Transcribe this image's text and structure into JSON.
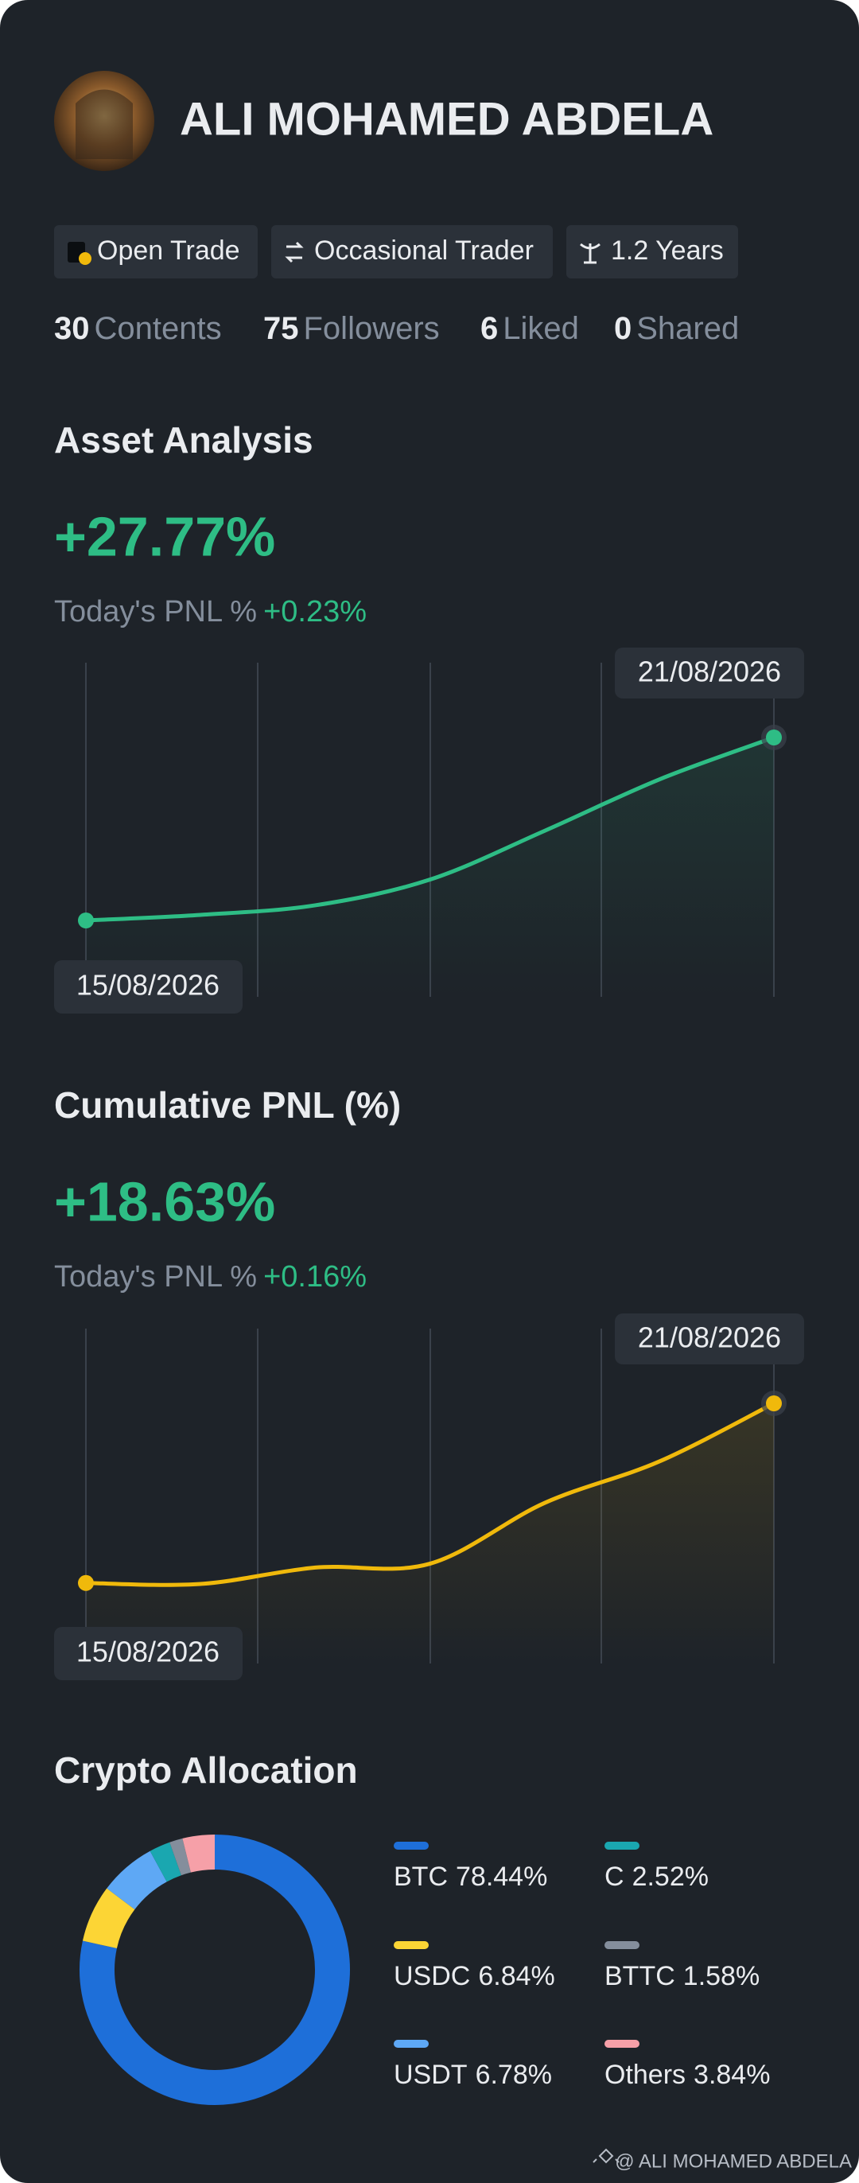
{
  "profile": {
    "name": "ALI MOHAMED ABDELA",
    "tags": [
      "Open Trade",
      "Occasional Trader",
      "1.2 Years"
    ],
    "stats": [
      {
        "value": 30,
        "label": "Contents"
      },
      {
        "value": 75,
        "label": "Followers"
      },
      {
        "value": 6,
        "label": "Liked"
      },
      {
        "value": 0,
        "label": "Shared"
      }
    ]
  },
  "asset_analysis": {
    "title": "Asset Analysis",
    "change": "+27.77%",
    "today_label": "Today's PNL %",
    "today_change": "+0.23%",
    "start_date": "15/08/2026",
    "end_date": "21/08/2026",
    "color": "#2ebd85",
    "values": [
      0,
      0.85,
      2.3,
      6.2,
      13.6,
      21.4,
      27.77
    ]
  },
  "cumulative_pnl": {
    "title": "Cumulative PNL (%)",
    "change": "+18.63%",
    "today_label": "Today's PNL %",
    "today_change": "+0.16%",
    "start_date": "15/08/2026",
    "end_date": "21/08/2026",
    "color": "#f0b90b",
    "values": [
      0,
      -0.1,
      1.6,
      2.0,
      8.3,
      12.6,
      18.63
    ]
  },
  "allocation": {
    "title": "Crypto Allocation",
    "items": [
      {
        "name": "BTC",
        "value": 78.44,
        "label": "78.44%",
        "color": "#1e6fd9"
      },
      {
        "name": "USDC",
        "value": 6.84,
        "label": "6.84%",
        "color": "#fcd535"
      },
      {
        "name": "USDT",
        "value": 6.78,
        "label": "6.78%",
        "color": "#5ea8f5"
      },
      {
        "name": "C",
        "value": 2.52,
        "label": "2.52%",
        "color": "#1aa7b0"
      },
      {
        "name": "BTTC",
        "value": 1.58,
        "label": "1.58%",
        "color": "#848e9c"
      },
      {
        "name": "Others",
        "value": 3.84,
        "label": "3.84%",
        "color": "#f6a0a8"
      }
    ]
  },
  "footer": "@ ALI MOHAMED ABDELA"
}
